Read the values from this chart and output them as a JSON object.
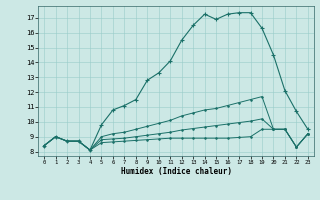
{
  "xlabel": "Humidex (Indice chaleur)",
  "xlim_min": -0.5,
  "xlim_max": 23.5,
  "ylim_min": 7.7,
  "ylim_max": 17.8,
  "yticks": [
    8,
    9,
    10,
    11,
    12,
    13,
    14,
    15,
    16,
    17
  ],
  "xticks": [
    0,
    1,
    2,
    3,
    4,
    5,
    6,
    7,
    8,
    9,
    10,
    11,
    12,
    13,
    14,
    15,
    16,
    17,
    18,
    19,
    20,
    21,
    22,
    23
  ],
  "background_color": "#cce8e5",
  "line_color": "#1a7068",
  "grid_color": "#99ccca",
  "curve1_x": [
    0,
    1,
    2,
    3,
    4,
    5,
    6,
    7,
    8,
    9,
    10,
    11,
    12,
    13,
    14,
    15,
    16,
    17,
    18,
    19,
    20,
    21,
    22,
    23
  ],
  "curve1_y": [
    8.4,
    9.0,
    8.7,
    8.7,
    8.1,
    9.8,
    10.8,
    11.1,
    11.5,
    12.8,
    13.3,
    14.1,
    15.5,
    16.5,
    17.25,
    16.9,
    17.25,
    17.35,
    17.35,
    16.3,
    14.5,
    12.1,
    10.7,
    9.5
  ],
  "curve2_x": [
    0,
    1,
    2,
    3,
    4,
    5,
    6,
    7,
    8,
    9,
    10,
    11,
    12,
    13,
    14,
    15,
    16,
    17,
    18,
    19,
    20,
    21,
    22,
    23
  ],
  "curve2_y": [
    8.4,
    9.0,
    8.7,
    8.7,
    8.1,
    9.0,
    9.2,
    9.3,
    9.5,
    9.7,
    9.9,
    10.1,
    10.4,
    10.6,
    10.8,
    10.9,
    11.1,
    11.3,
    11.5,
    11.7,
    9.5,
    9.5,
    8.3,
    9.2
  ],
  "curve3_x": [
    0,
    1,
    2,
    3,
    4,
    5,
    6,
    7,
    8,
    9,
    10,
    11,
    12,
    13,
    14,
    15,
    16,
    17,
    18,
    19,
    20,
    21,
    22,
    23
  ],
  "curve3_y": [
    8.4,
    9.0,
    8.7,
    8.7,
    8.1,
    8.8,
    8.85,
    8.9,
    9.0,
    9.1,
    9.2,
    9.3,
    9.45,
    9.55,
    9.65,
    9.75,
    9.85,
    9.95,
    10.05,
    10.2,
    9.5,
    9.5,
    8.3,
    9.2
  ],
  "curve4_x": [
    0,
    1,
    2,
    3,
    4,
    5,
    6,
    7,
    8,
    9,
    10,
    11,
    12,
    13,
    14,
    15,
    16,
    17,
    18,
    19,
    20,
    21,
    22,
    23
  ],
  "curve4_y": [
    8.4,
    9.0,
    8.7,
    8.7,
    8.1,
    8.6,
    8.65,
    8.7,
    8.75,
    8.8,
    8.85,
    8.9,
    8.9,
    8.9,
    8.9,
    8.9,
    8.9,
    8.95,
    9.0,
    9.5,
    9.5,
    9.5,
    8.3,
    9.2
  ]
}
